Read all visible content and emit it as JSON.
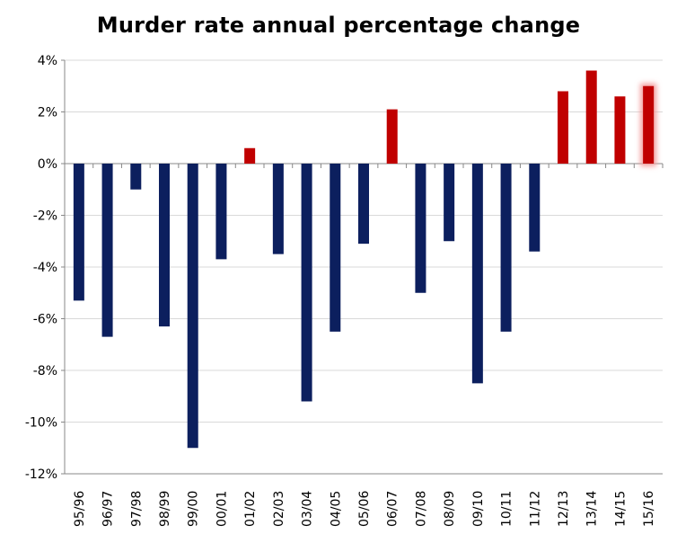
{
  "chart_data": {
    "type": "bar",
    "title": "Murder rate annual percentage change",
    "xlabel": "",
    "ylabel": "",
    "ylim": [
      -12,
      4
    ],
    "yticks": [
      4,
      2,
      0,
      -2,
      -4,
      -6,
      -8,
      -10,
      -12
    ],
    "ytick_labels": [
      "4%",
      "2%",
      "0%",
      "-2%",
      "-4%",
      "-6%",
      "-8%",
      "-10%",
      "-12%"
    ],
    "grid": true,
    "categories": [
      "95/96",
      "96/97",
      "97/98",
      "98/99",
      "99/00",
      "00/01",
      "01/02",
      "02/03",
      "03/04",
      "04/05",
      "05/06",
      "06/07",
      "07/08",
      "08/09",
      "09/10",
      "10/11",
      "11/12",
      "12/13",
      "13/14",
      "14/15",
      "15/16"
    ],
    "values": [
      -5.3,
      -6.7,
      -1.0,
      -6.3,
      -11.0,
      -3.7,
      0.6,
      -3.5,
      -9.2,
      -6.5,
      -3.1,
      2.1,
      -5.0,
      -3.0,
      -8.5,
      -6.5,
      -3.4,
      2.8,
      3.6,
      2.6,
      3.0
    ],
    "colors": {
      "negative": "#0c1f5e",
      "positive": "#c00000",
      "highlight_glow": "#f4a0a0",
      "grid": "#d9d9d9",
      "axis": "#888888"
    },
    "highlight_category": "15/16"
  }
}
